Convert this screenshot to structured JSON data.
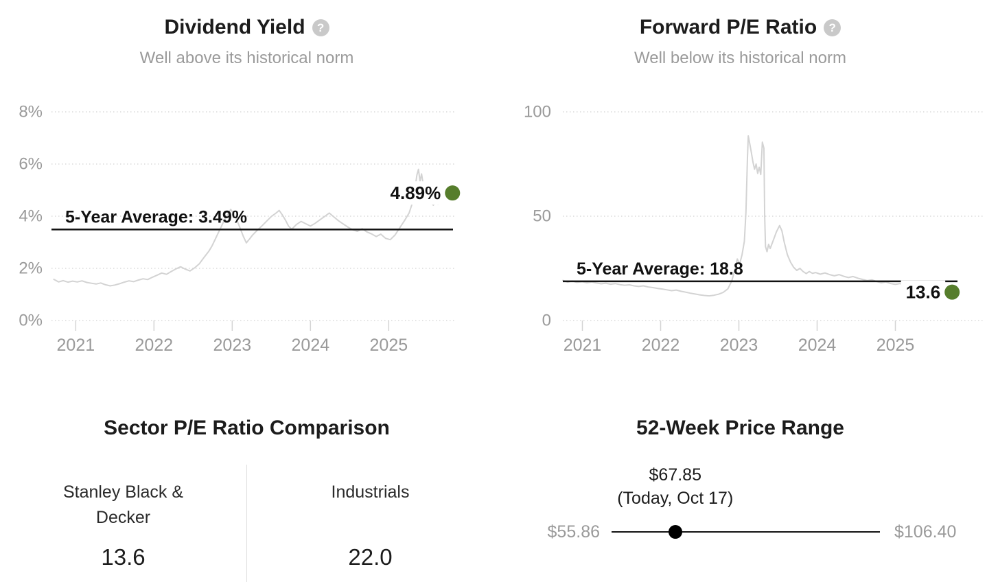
{
  "ui": {
    "help_glyph": "?"
  },
  "colors": {
    "accent_green": "#567d2c",
    "average_line": "#111111",
    "series_line": "#d3d3d3",
    "muted_text": "#9a9a9a",
    "title_text": "#1c1c1c"
  },
  "panels": {
    "sector_comparison": {
      "title": "Sector P/E Ratio Comparison",
      "left": {
        "label_line1": "Stanley Black &",
        "label_line2": "Decker",
        "value": "13.6"
      },
      "right": {
        "label": "Industrials",
        "value": "22.0"
      }
    },
    "price_range": {
      "title": "52-Week Price Range",
      "current_price": "$67.85",
      "current_note": "(Today, Oct 17)",
      "min_label": "$55.86",
      "max_label": "$106.40",
      "min_value": 55.86,
      "max_value": 106.4,
      "current_value": 67.85
    }
  },
  "chart_data": [
    {
      "type": "line",
      "title": "Dividend Yield",
      "subtitle": "Well above its historical norm",
      "grid": "dotted horizontal",
      "legend": "none",
      "x_range": [
        2020.69,
        2025.85
      ],
      "x_tick_values": [
        2021,
        2022,
        2023,
        2024,
        2025
      ],
      "x_ticks": [
        "2021",
        "2022",
        "2023",
        "2024",
        "2025"
      ],
      "y_range": [
        0,
        8
      ],
      "y_ticks": [
        {
          "v": 8,
          "label": "8%"
        },
        {
          "v": 6,
          "label": "6%"
        },
        {
          "v": 4,
          "label": "4%"
        },
        {
          "v": 2,
          "label": "2%"
        },
        {
          "v": 0,
          "label": "0%"
        }
      ],
      "average_line": {
        "value": 3.49,
        "label": "5-Year Average: 3.49%"
      },
      "current": {
        "value": 4.89,
        "label": "4.89%",
        "marker_color": "#567d2c"
      },
      "series": [
        {
          "name": "Dividend Yield %",
          "points": [
            [
              2020.72,
              1.58
            ],
            [
              2020.78,
              1.48
            ],
            [
              2020.84,
              1.53
            ],
            [
              2020.9,
              1.47
            ],
            [
              2020.96,
              1.51
            ],
            [
              2021.02,
              1.48
            ],
            [
              2021.08,
              1.52
            ],
            [
              2021.14,
              1.46
            ],
            [
              2021.2,
              1.43
            ],
            [
              2021.26,
              1.4
            ],
            [
              2021.32,
              1.44
            ],
            [
              2021.38,
              1.37
            ],
            [
              2021.44,
              1.33
            ],
            [
              2021.5,
              1.36
            ],
            [
              2021.56,
              1.41
            ],
            [
              2021.62,
              1.47
            ],
            [
              2021.68,
              1.52
            ],
            [
              2021.74,
              1.49
            ],
            [
              2021.8,
              1.55
            ],
            [
              2021.86,
              1.6
            ],
            [
              2021.92,
              1.57
            ],
            [
              2021.98,
              1.66
            ],
            [
              2022.04,
              1.74
            ],
            [
              2022.1,
              1.82
            ],
            [
              2022.16,
              1.77
            ],
            [
              2022.22,
              1.88
            ],
            [
              2022.28,
              1.98
            ],
            [
              2022.34,
              2.06
            ],
            [
              2022.4,
              1.97
            ],
            [
              2022.46,
              1.9
            ],
            [
              2022.52,
              2.02
            ],
            [
              2022.58,
              2.18
            ],
            [
              2022.64,
              2.42
            ],
            [
              2022.7,
              2.65
            ],
            [
              2022.74,
              2.85
            ],
            [
              2022.78,
              3.1
            ],
            [
              2022.82,
              3.35
            ],
            [
              2022.86,
              3.6
            ],
            [
              2022.9,
              3.85
            ],
            [
              2022.94,
              4.05
            ],
            [
              2022.98,
              4.26
            ],
            [
              2023.02,
              4.1
            ],
            [
              2023.06,
              3.85
            ],
            [
              2023.1,
              3.55
            ],
            [
              2023.14,
              3.24
            ],
            [
              2023.18,
              2.98
            ],
            [
              2023.22,
              3.12
            ],
            [
              2023.26,
              3.28
            ],
            [
              2023.32,
              3.46
            ],
            [
              2023.38,
              3.63
            ],
            [
              2023.44,
              3.81
            ],
            [
              2023.5,
              3.99
            ],
            [
              2023.56,
              4.12
            ],
            [
              2023.6,
              4.22
            ],
            [
              2023.64,
              4.05
            ],
            [
              2023.68,
              3.85
            ],
            [
              2023.72,
              3.62
            ],
            [
              2023.76,
              3.5
            ],
            [
              2023.82,
              3.68
            ],
            [
              2023.88,
              3.8
            ],
            [
              2023.94,
              3.71
            ],
            [
              2024.0,
              3.62
            ],
            [
              2024.06,
              3.73
            ],
            [
              2024.12,
              3.86
            ],
            [
              2024.18,
              3.99
            ],
            [
              2024.24,
              4.12
            ],
            [
              2024.3,
              3.97
            ],
            [
              2024.36,
              3.82
            ],
            [
              2024.42,
              3.7
            ],
            [
              2024.48,
              3.58
            ],
            [
              2024.54,
              3.48
            ],
            [
              2024.6,
              3.42
            ],
            [
              2024.66,
              3.52
            ],
            [
              2024.72,
              3.4
            ],
            [
              2024.78,
              3.32
            ],
            [
              2024.84,
              3.22
            ],
            [
              2024.9,
              3.31
            ],
            [
              2024.96,
              3.15
            ],
            [
              2025.02,
              3.1
            ],
            [
              2025.08,
              3.28
            ],
            [
              2025.14,
              3.55
            ],
            [
              2025.2,
              3.82
            ],
            [
              2025.26,
              4.12
            ],
            [
              2025.3,
              4.48
            ],
            [
              2025.33,
              4.95
            ],
            [
              2025.36,
              5.58
            ],
            [
              2025.38,
              5.8
            ],
            [
              2025.4,
              5.34
            ],
            [
              2025.42,
              5.62
            ],
            [
              2025.45,
              5.05
            ],
            [
              2025.48,
              4.78
            ],
            [
              2025.51,
              4.62
            ],
            [
              2025.54,
              4.52
            ],
            [
              2025.57,
              4.42
            ],
            [
              2025.6,
              4.57
            ],
            [
              2025.63,
              4.46
            ],
            [
              2025.66,
              4.6
            ],
            [
              2025.69,
              4.72
            ],
            [
              2025.71,
              4.89
            ]
          ]
        }
      ]
    },
    {
      "type": "line",
      "title": "Forward P/E Ratio",
      "subtitle": "Well below its historical norm",
      "grid": "dotted horizontal",
      "legend": "none",
      "x_range": [
        2020.75,
        2026.0
      ],
      "x_tick_values": [
        2021,
        2022,
        2023,
        2024,
        2025
      ],
      "x_ticks": [
        "2021",
        "2022",
        "2023",
        "2024",
        "2025"
      ],
      "y_range": [
        0,
        100
      ],
      "y_ticks": [
        {
          "v": 100,
          "label": "100"
        },
        {
          "v": 50,
          "label": "50"
        },
        {
          "v": 0,
          "label": "0"
        }
      ],
      "average_line": {
        "value": 18.8,
        "label": "5-Year Average: 18.8"
      },
      "current": {
        "value": 13.6,
        "label": "13.6",
        "marker_color": "#567d2c"
      },
      "series": [
        {
          "name": "Forward P/E",
          "points": [
            [
              2020.75,
              19.2
            ],
            [
              2020.81,
              18.4
            ],
            [
              2020.87,
              18.9
            ],
            [
              2020.93,
              18.3
            ],
            [
              2021.0,
              18.6
            ],
            [
              2021.06,
              18.1
            ],
            [
              2021.12,
              18.5
            ],
            [
              2021.18,
              18.0
            ],
            [
              2021.24,
              17.6
            ],
            [
              2021.3,
              17.9
            ],
            [
              2021.36,
              17.4
            ],
            [
              2021.42,
              17.7
            ],
            [
              2021.48,
              17.2
            ],
            [
              2021.54,
              16.9
            ],
            [
              2021.6,
              17.1
            ],
            [
              2021.66,
              16.6
            ],
            [
              2021.72,
              16.3
            ],
            [
              2021.78,
              16.6
            ],
            [
              2021.84,
              16.1
            ],
            [
              2021.9,
              15.8
            ],
            [
              2021.96,
              15.4
            ],
            [
              2022.02,
              15.1
            ],
            [
              2022.08,
              14.7
            ],
            [
              2022.14,
              14.3
            ],
            [
              2022.2,
              14.6
            ],
            [
              2022.26,
              14.0
            ],
            [
              2022.32,
              13.6
            ],
            [
              2022.38,
              13.1
            ],
            [
              2022.44,
              12.7
            ],
            [
              2022.5,
              12.3
            ],
            [
              2022.56,
              12.0
            ],
            [
              2022.62,
              11.8
            ],
            [
              2022.68,
              12.1
            ],
            [
              2022.74,
              12.6
            ],
            [
              2022.8,
              13.5
            ],
            [
              2022.86,
              15.2
            ],
            [
              2022.91,
              19.0
            ],
            [
              2022.95,
              24.5
            ],
            [
              2022.98,
              29.5
            ],
            [
              2023.01,
              27.0
            ],
            [
              2023.04,
              31.5
            ],
            [
              2023.07,
              38.0
            ],
            [
              2023.09,
              52.0
            ],
            [
              2023.11,
              78.0
            ],
            [
              2023.12,
              88.5
            ],
            [
              2023.14,
              84.5
            ],
            [
              2023.16,
              80.5
            ],
            [
              2023.18,
              76.0
            ],
            [
              2023.2,
              72.5
            ],
            [
              2023.22,
              75.0
            ],
            [
              2023.24,
              70.5
            ],
            [
              2023.26,
              73.5
            ],
            [
              2023.28,
              70.0
            ],
            [
              2023.3,
              85.5
            ],
            [
              2023.32,
              82.5
            ],
            [
              2023.33,
              50.0
            ],
            [
              2023.34,
              35.5
            ],
            [
              2023.36,
              33.0
            ],
            [
              2023.38,
              36.5
            ],
            [
              2023.4,
              34.5
            ],
            [
              2023.44,
              38.5
            ],
            [
              2023.48,
              42.5
            ],
            [
              2023.52,
              45.5
            ],
            [
              2023.55,
              43.0
            ],
            [
              2023.58,
              37.5
            ],
            [
              2023.62,
              31.5
            ],
            [
              2023.66,
              28.0
            ],
            [
              2023.7,
              25.5
            ],
            [
              2023.74,
              24.0
            ],
            [
              2023.78,
              25.0
            ],
            [
              2023.82,
              23.5
            ],
            [
              2023.86,
              22.5
            ],
            [
              2023.9,
              23.5
            ],
            [
              2023.94,
              22.6
            ],
            [
              2023.98,
              23.0
            ],
            [
              2024.04,
              22.2
            ],
            [
              2024.1,
              22.8
            ],
            [
              2024.16,
              22.0
            ],
            [
              2024.22,
              21.4
            ],
            [
              2024.28,
              22.0
            ],
            [
              2024.34,
              21.2
            ],
            [
              2024.4,
              20.6
            ],
            [
              2024.46,
              21.1
            ],
            [
              2024.52,
              20.3
            ],
            [
              2024.58,
              19.7
            ],
            [
              2024.64,
              19.1
            ],
            [
              2024.7,
              19.5
            ],
            [
              2024.76,
              18.7
            ],
            [
              2024.82,
              18.1
            ],
            [
              2024.88,
              18.5
            ],
            [
              2024.94,
              17.7
            ],
            [
              2025.0,
              17.3
            ],
            [
              2025.06,
              17.7
            ],
            [
              2025.12,
              16.9
            ],
            [
              2025.18,
              16.3
            ],
            [
              2025.24,
              16.7
            ],
            [
              2025.3,
              15.9
            ],
            [
              2025.36,
              15.3
            ],
            [
              2025.42,
              15.7
            ],
            [
              2025.48,
              15.0
            ],
            [
              2025.54,
              14.5
            ],
            [
              2025.58,
              14.9
            ],
            [
              2025.62,
              13.6
            ]
          ]
        }
      ]
    }
  ]
}
